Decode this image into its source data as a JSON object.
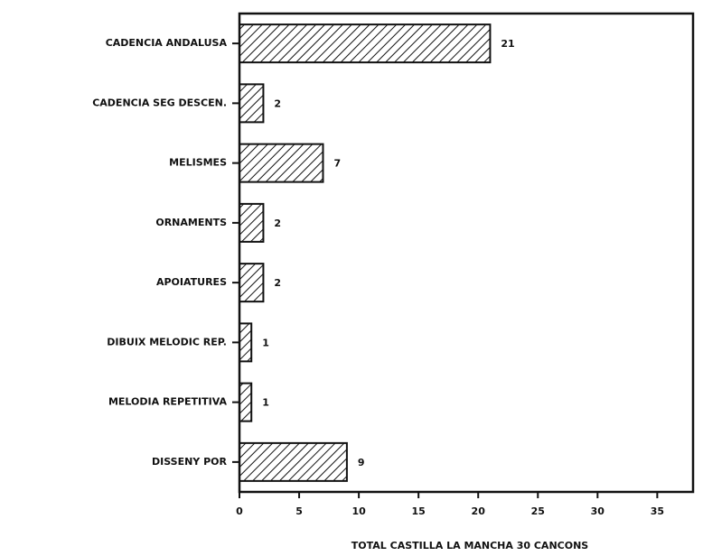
{
  "chart_data": {
    "type": "barh",
    "categories": [
      "CADENCIA ANDALUSA",
      "CADENCIA SEG DESCEN.",
      "MELISMES",
      "ORNAMENTS",
      "APOIATURES",
      "DIBUIX MELODIC REP.",
      "MELODIA REPETITIVA",
      "DISSENY POR"
    ],
    "values": [
      21,
      2,
      7,
      2,
      2,
      1,
      1,
      9
    ],
    "xlabel": "TOTAL CASTILLA LA MANCHA 30 CANCONS",
    "xlim": [
      0,
      38
    ],
    "xticks": [
      0,
      5,
      10,
      15,
      20,
      25,
      30,
      35
    ],
    "color": "#ffffff",
    "hatch": true
  }
}
